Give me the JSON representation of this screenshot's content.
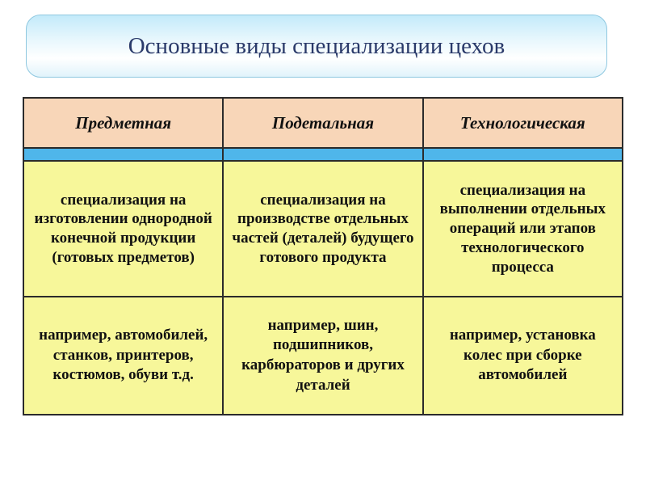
{
  "title": "Основные виды специализации цехов",
  "columns": [
    {
      "header": "Предметная"
    },
    {
      "header": "Подетальная"
    },
    {
      "header": "Технологическая"
    }
  ],
  "descriptions": [
    "специализация на изготовлении однородной конечной продукции (готовых предметов)",
    "специализация на производстве отдельных частей (деталей) будущего готового продукта",
    "специализация на выполнении отдельных операций или этапов технологического процесса"
  ],
  "examples": [
    "например, автомобилей, станков, принтеров, костюмов, обуви т.д.",
    "например, шин, подшипников, карбюраторов и других деталей",
    "например, установка колес при сборке автомобилей"
  ],
  "colors": {
    "banner_gradient_top": "#c3eafa",
    "banner_gradient_bottom": "#e0f3fb",
    "banner_border": "#8fc8e0",
    "title_text": "#2a3a6a",
    "header_bg": "#f8d6b8",
    "accent_bg": "#4fb6ea",
    "body_bg": "#f7f79a",
    "border": "#2b2b2b"
  },
  "fonts": {
    "family": "Times New Roman",
    "title_size_pt": 22,
    "header_size_pt": 16,
    "body_size_pt": 14
  }
}
